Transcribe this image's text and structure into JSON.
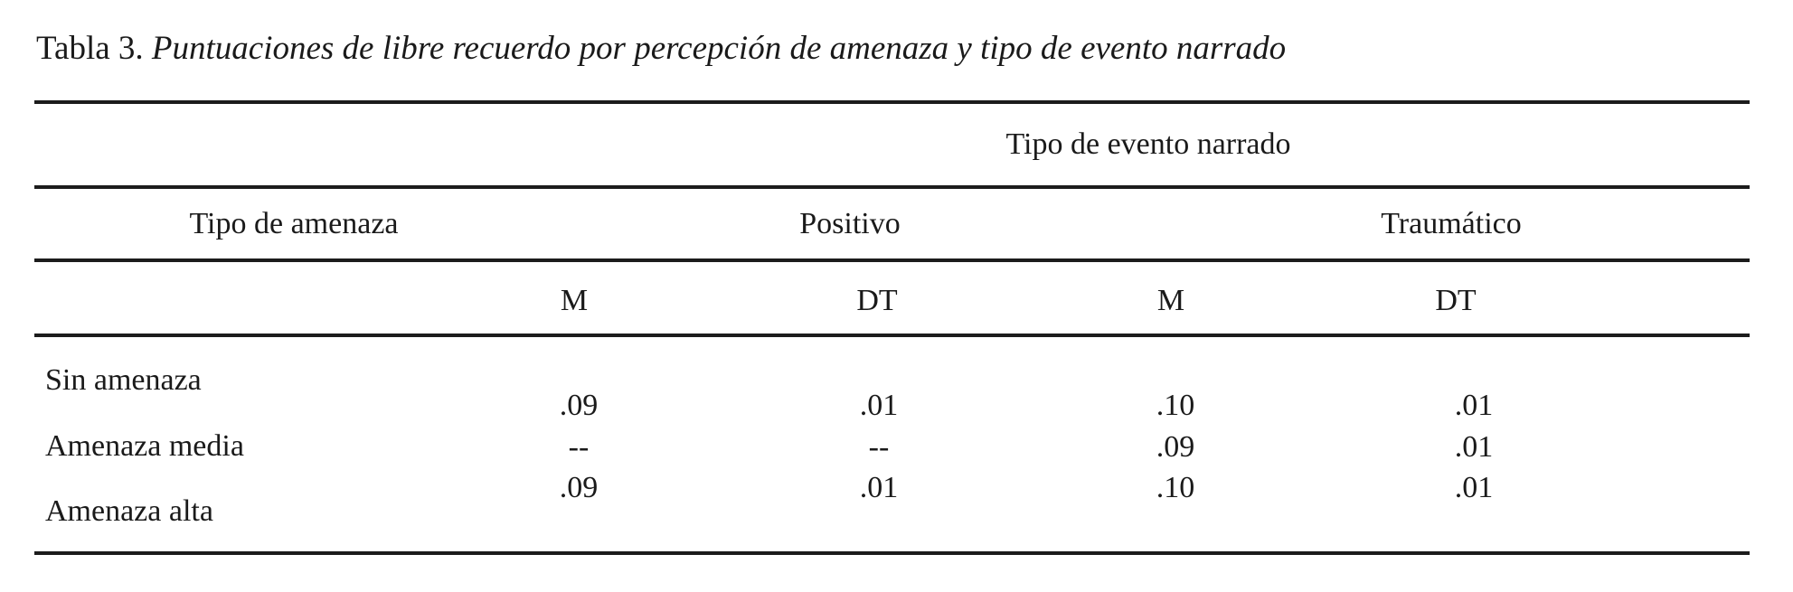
{
  "title": {
    "prefix": "Tabla 3. ",
    "text": "Puntuaciones de libre recuerdo por percepción de amenaza y tipo de evento narrado"
  },
  "table": {
    "spanner": "Tipo de evento narrado",
    "stub_header": "Tipo de amenaza",
    "groups": [
      {
        "label": "Positivo"
      },
      {
        "label": "Traumático"
      }
    ],
    "columns": [
      "M",
      "DT",
      "M",
      "DT"
    ],
    "rows": [
      {
        "label": "Sin amenaza",
        "values": [
          ".09",
          ".01",
          ".10",
          ".01"
        ]
      },
      {
        "label": "Amenaza media",
        "values": [
          "--",
          "--",
          ".09",
          ".01"
        ]
      },
      {
        "label": "Amenaza alta",
        "values": [
          ".09",
          ".01",
          ".10",
          ".01"
        ]
      }
    ]
  },
  "chart_data": {
    "type": "table",
    "title": "Tabla 3. Puntuaciones de libre recuerdo por percepción de amenaza y tipo de evento narrado",
    "column_groups": [
      "Positivo",
      "Traumático"
    ],
    "columns": [
      "M",
      "DT",
      "M",
      "DT"
    ],
    "row_header": "Tipo de amenaza",
    "rows": [
      {
        "label": "Sin amenaza",
        "Positivo_M": ".09",
        "Positivo_DT": ".01",
        "Traumatico_M": ".10",
        "Traumatico_DT": ".01"
      },
      {
        "label": "Amenaza media",
        "Positivo_M": "--",
        "Positivo_DT": "--",
        "Traumatico_M": ".09",
        "Traumatico_DT": ".01"
      },
      {
        "label": "Amenaza alta",
        "Positivo_M": ".09",
        "Positivo_DT": ".01",
        "Traumatico_M": ".10",
        "Traumatico_DT": ".01"
      }
    ]
  }
}
